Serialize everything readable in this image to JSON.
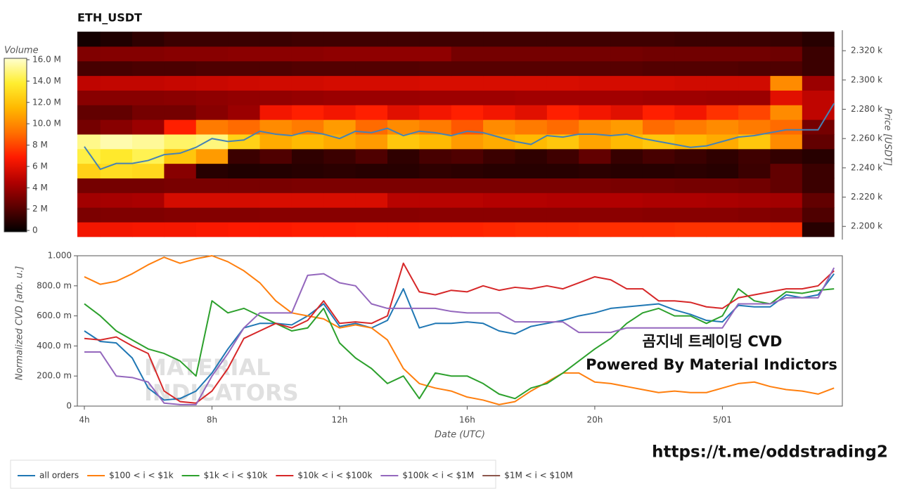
{
  "chart_data": [
    {
      "type": "heatmap",
      "title": "ETH_USDT",
      "y_label": "Price [USDT]",
      "colorbar_title": "Volume",
      "xlim": [
        3.78,
        27.76
      ],
      "x": [
        4,
        5,
        6,
        7,
        8,
        9,
        10,
        11,
        12,
        13,
        14,
        15,
        16,
        17,
        18,
        19,
        20,
        21,
        22,
        23,
        24,
        25,
        26,
        27
      ],
      "y": [
        2198,
        2208,
        2218,
        2228,
        2238,
        2248,
        2258,
        2268,
        2278,
        2288,
        2298,
        2308,
        2318,
        2328
      ],
      "ylim": [
        2191,
        2334
      ],
      "yticks": [
        {
          "value": 2200,
          "label": "2.200 k"
        },
        {
          "value": 2220,
          "label": "2.220 k"
        },
        {
          "value": 2240,
          "label": "2.240 k"
        },
        {
          "value": 2260,
          "label": "2.260 k"
        },
        {
          "value": 2280,
          "label": "2.280 k"
        },
        {
          "value": 2300,
          "label": "2.300 k"
        },
        {
          "value": 2320,
          "label": "2.320 k"
        }
      ],
      "zlim": [
        0,
        16
      ],
      "zticks": [
        0,
        {
          "value": 2,
          "label": "2 M"
        },
        {
          "value": 4,
          "label": "4 M"
        },
        {
          "value": 6,
          "label": "6 M"
        },
        {
          "value": 8,
          "label": "8 M"
        },
        {
          "value": 10,
          "label": "10.0 M"
        },
        {
          "value": 12,
          "label": "12.0 M"
        },
        {
          "value": 14,
          "label": "14.0 M"
        },
        {
          "value": 16,
          "label": "16.0 M"
        }
      ],
      "colorscale": [
        "#000000",
        "#5a0000",
        "#b00000",
        "#ff1a00",
        "#ff7000",
        "#ffb800",
        "#ffee30",
        "#ffffd0"
      ],
      "z": [
        [
          6.5,
          6.5,
          6.6,
          6.6,
          6.7,
          6.8,
          6.8,
          6.9,
          6.9,
          7.0,
          7.0,
          7.1,
          7.1,
          7.2,
          7.3,
          7.3,
          7.4,
          7.4,
          7.4,
          7.5,
          7.5,
          7.5,
          7.4,
          1.0
        ],
        [
          3.2,
          3.3,
          3.3,
          3.4,
          3.4,
          3.4,
          3.5,
          3.5,
          3.5,
          3.5,
          3.5,
          3.6,
          3.6,
          3.6,
          3.6,
          3.6,
          3.6,
          3.6,
          3.5,
          3.5,
          3.5,
          3.4,
          3.3,
          2.0
        ],
        [
          4.2,
          4.3,
          4.4,
          5.6,
          5.6,
          5.6,
          5.7,
          5.7,
          5.7,
          5.7,
          4.8,
          4.8,
          4.8,
          4.7,
          4.7,
          4.6,
          4.6,
          4.6,
          4.5,
          4.5,
          4.4,
          4.3,
          4.2,
          2.5
        ],
        [
          3.0,
          3.0,
          3.0,
          3.1,
          3.1,
          3.1,
          3.1,
          3.2,
          3.2,
          3.2,
          3.2,
          3.2,
          3.2,
          3.2,
          3.2,
          3.2,
          3.2,
          3.1,
          3.1,
          3.0,
          3.0,
          2.9,
          2.5,
          1.5
        ],
        [
          12.5,
          13.0,
          12.8,
          3.5,
          1.0,
          0.8,
          0.9,
          1.0,
          1.1,
          1.0,
          1.0,
          1.2,
          1.1,
          1.0,
          1.0,
          1.0,
          1.1,
          1.0,
          1.0,
          1.1,
          1.0,
          1.5,
          2.5,
          1.5
        ],
        [
          14.0,
          13.5,
          14.2,
          12.0,
          10.5,
          1.5,
          2.0,
          1.2,
          1.5,
          2.0,
          1.2,
          1.8,
          2.0,
          1.5,
          1.2,
          1.6,
          2.5,
          1.4,
          1.8,
          1.5,
          1.2,
          1.6,
          1.3,
          1.0
        ],
        [
          15.0,
          15.5,
          15.2,
          14.5,
          14.8,
          12.5,
          11.0,
          11.5,
          11.0,
          10.5,
          12.0,
          11.5,
          10.5,
          11.0,
          11.5,
          12.0,
          10.8,
          11.5,
          12.0,
          11.5,
          11.0,
          12.0,
          10.0,
          2.5
        ],
        [
          3.0,
          3.5,
          4.0,
          7.0,
          9.5,
          9.0,
          10.0,
          9.5,
          10.5,
          9.0,
          10.0,
          9.5,
          8.5,
          10.0,
          9.5,
          9.0,
          10.0,
          10.5,
          9.0,
          9.5,
          10.0,
          9.5,
          9.0,
          3.0
        ],
        [
          2.5,
          2.5,
          3.0,
          3.0,
          3.5,
          4.0,
          6.5,
          7.0,
          6.5,
          7.0,
          6.0,
          6.5,
          7.0,
          6.5,
          6.0,
          7.0,
          6.5,
          6.0,
          7.0,
          6.5,
          7.5,
          8.0,
          10.0,
          5.0
        ],
        [
          3.5,
          3.5,
          3.5,
          3.6,
          3.7,
          3.8,
          3.8,
          3.9,
          4.0,
          4.0,
          4.0,
          4.1,
          4.1,
          4.1,
          4.2,
          4.2,
          4.2,
          4.2,
          4.1,
          4.1,
          4.0,
          4.0,
          6.0,
          5.0
        ],
        [
          5.0,
          5.1,
          5.1,
          5.2,
          5.3,
          5.4,
          5.5,
          5.5,
          5.6,
          5.6,
          5.6,
          5.7,
          5.7,
          5.7,
          5.7,
          5.7,
          5.6,
          5.6,
          5.6,
          5.5,
          5.5,
          5.5,
          10.0,
          4.0
        ],
        [
          1.8,
          1.8,
          1.9,
          1.9,
          2.0,
          2.0,
          2.0,
          2.1,
          2.1,
          2.1,
          2.1,
          2.2,
          2.2,
          2.2,
          2.2,
          2.2,
          2.2,
          2.2,
          2.1,
          2.1,
          2.1,
          2.0,
          2.0,
          1.5
        ],
        [
          3.3,
          3.4,
          3.4,
          3.5,
          3.5,
          3.6,
          3.6,
          3.6,
          3.7,
          3.7,
          3.7,
          3.7,
          3.0,
          3.0,
          3.0,
          3.0,
          3.0,
          3.0,
          2.9,
          2.9,
          2.9,
          2.9,
          2.8,
          1.5
        ],
        [
          0.5,
          0.8,
          1.2,
          1.5,
          1.5,
          1.5,
          1.5,
          1.6,
          1.6,
          1.6,
          1.6,
          1.6,
          1.6,
          1.6,
          1.6,
          1.6,
          1.6,
          1.6,
          1.6,
          1.5,
          1.5,
          1.5,
          1.4,
          1.0
        ]
      ],
      "price_line": {
        "color": "#4682b4",
        "x": [
          4,
          4.5,
          5,
          5.5,
          6,
          6.5,
          7,
          7.5,
          8,
          8.5,
          9,
          9.5,
          10,
          10.5,
          11,
          11.5,
          12,
          12.5,
          13,
          13.5,
          14,
          14.5,
          15,
          15.5,
          16,
          16.5,
          17,
          17.5,
          18,
          18.5,
          19,
          19.5,
          20,
          20.5,
          21,
          21.5,
          22,
          22.5,
          23,
          23.5,
          24,
          24.5,
          25,
          25.5,
          26,
          26.5,
          27,
          27.5
        ],
        "values": [
          2254.5,
          2239,
          2243,
          2243,
          2245,
          2249,
          2250,
          2254,
          2260,
          2258,
          2259,
          2265,
          2263,
          2262,
          2265,
          2263,
          2260,
          2265,
          2264,
          2267,
          2262,
          2265,
          2264,
          2262,
          2265,
          2264,
          2261,
          2258,
          2256,
          2262,
          2261,
          2263,
          2263,
          2262,
          2263,
          2260,
          2258,
          2256,
          2254,
          2255,
          2258,
          2261,
          2262,
          2264,
          2266,
          2266,
          2266,
          2284
        ]
      }
    },
    {
      "type": "line",
      "x_label": "Date (UTC)",
      "y_label": "Normalized CVD [arb. u.]",
      "xlim": [
        3.78,
        27.76
      ],
      "xticks": [
        {
          "value": 4,
          "label": "4h"
        },
        {
          "value": 8,
          "label": "8h"
        },
        {
          "value": 12,
          "label": "12h"
        },
        {
          "value": 16,
          "label": "16h"
        },
        {
          "value": 20,
          "label": "20h"
        },
        {
          "value": 24,
          "label": "5/01"
        }
      ],
      "ylim": [
        0,
        1
      ],
      "yticks": [
        0,
        {
          "value": 0.2,
          "label": "200.0 m"
        },
        {
          "value": 0.4,
          "label": "400.0 m"
        },
        {
          "value": 0.6,
          "label": "600.0 m"
        },
        {
          "value": 0.8,
          "label": "800.0 m"
        },
        {
          "value": 1,
          "label": "1.000"
        }
      ],
      "x": [
        4,
        4.5,
        5,
        5.5,
        6,
        6.5,
        7,
        7.5,
        8,
        8.5,
        9,
        9.5,
        10,
        10.5,
        11,
        11.5,
        12,
        12.5,
        13,
        13.5,
        14,
        14.5,
        15,
        15.5,
        16,
        16.5,
        17,
        17.5,
        18,
        18.5,
        19,
        19.5,
        20,
        20.5,
        21,
        21.5,
        22,
        22.5,
        23,
        23.5,
        24,
        24.5,
        25,
        25.5,
        26,
        26.5,
        27,
        27.5
      ],
      "series": [
        {
          "name": "all orders",
          "color": "#1f77b4",
          "values": [
            0.5,
            0.43,
            0.42,
            0.32,
            0.12,
            0.04,
            0.05,
            0.1,
            0.22,
            0.38,
            0.52,
            0.55,
            0.55,
            0.54,
            0.6,
            0.68,
            0.53,
            0.55,
            0.52,
            0.57,
            0.78,
            0.52,
            0.55,
            0.55,
            0.56,
            0.55,
            0.5,
            0.48,
            0.53,
            0.55,
            0.57,
            0.6,
            0.62,
            0.65,
            0.66,
            0.67,
            0.68,
            0.64,
            0.61,
            0.57,
            0.56,
            0.67,
            0.66,
            0.66,
            0.74,
            0.72,
            0.74,
            0.88
          ]
        },
        {
          "name": "$100 < i < $1k",
          "color": "#ff7f0e",
          "values": [
            0.86,
            0.81,
            0.83,
            0.88,
            0.94,
            0.99,
            0.95,
            0.98,
            1.0,
            0.96,
            0.9,
            0.82,
            0.7,
            0.62,
            0.6,
            0.58,
            0.52,
            0.54,
            0.52,
            0.44,
            0.25,
            0.15,
            0.12,
            0.1,
            0.06,
            0.04,
            0.01,
            0.03,
            0.1,
            0.16,
            0.22,
            0.22,
            0.16,
            0.15,
            0.13,
            0.11,
            0.09,
            0.1,
            0.09,
            0.09,
            0.12,
            0.15,
            0.16,
            0.13,
            0.11,
            0.1,
            0.08,
            0.12
          ]
        },
        {
          "name": "$1k < i < $10k",
          "color": "#2ca02c",
          "values": [
            0.68,
            0.6,
            0.5,
            0.44,
            0.38,
            0.35,
            0.3,
            0.2,
            0.7,
            0.62,
            0.65,
            0.6,
            0.55,
            0.5,
            0.52,
            0.65,
            0.42,
            0.32,
            0.25,
            0.15,
            0.2,
            0.05,
            0.22,
            0.2,
            0.2,
            0.15,
            0.08,
            0.05,
            0.12,
            0.15,
            0.22,
            0.3,
            0.38,
            0.45,
            0.55,
            0.62,
            0.65,
            0.6,
            0.6,
            0.55,
            0.6,
            0.78,
            0.7,
            0.68,
            0.76,
            0.75,
            0.77,
            0.78
          ]
        },
        {
          "name": "$10k < i < $100k",
          "color": "#d62728",
          "values": [
            0.45,
            0.44,
            0.46,
            0.4,
            0.35,
            0.1,
            0.03,
            0.02,
            0.1,
            0.25,
            0.45,
            0.5,
            0.55,
            0.52,
            0.57,
            0.7,
            0.55,
            0.56,
            0.55,
            0.6,
            0.95,
            0.76,
            0.74,
            0.77,
            0.76,
            0.8,
            0.77,
            0.79,
            0.78,
            0.8,
            0.78,
            0.82,
            0.86,
            0.84,
            0.78,
            0.78,
            0.7,
            0.7,
            0.69,
            0.66,
            0.65,
            0.72,
            0.74,
            0.76,
            0.78,
            0.78,
            0.8,
            0.9
          ]
        },
        {
          "name": "$100k < i < $1M",
          "color": "#9467bd",
          "values": [
            0.36,
            0.36,
            0.2,
            0.19,
            0.16,
            0.02,
            0.01,
            0.01,
            0.2,
            0.35,
            0.52,
            0.62,
            0.62,
            0.62,
            0.87,
            0.88,
            0.82,
            0.8,
            0.68,
            0.65,
            0.65,
            0.65,
            0.65,
            0.63,
            0.62,
            0.62,
            0.62,
            0.56,
            0.56,
            0.56,
            0.56,
            0.49,
            0.49,
            0.49,
            0.52,
            0.52,
            0.52,
            0.52,
            0.52,
            0.52,
            0.52,
            0.68,
            0.68,
            0.68,
            0.72,
            0.72,
            0.72,
            0.92
          ]
        },
        {
          "name": "$1M < i < $10M",
          "color": "#8c564b",
          "values": [
            null,
            null,
            null,
            null,
            null,
            null,
            null,
            null,
            null,
            null,
            null,
            null,
            null,
            null,
            null,
            null,
            null,
            null,
            null,
            null,
            null,
            null,
            null,
            null,
            null,
            null,
            null,
            null,
            null,
            null,
            null,
            null,
            null,
            null,
            null,
            null,
            null,
            null,
            null,
            null,
            null,
            null,
            null,
            null,
            null,
            null,
            null,
            null
          ]
        }
      ],
      "annotations": [
        "곰지네 트레이딩 CVD",
        "Powered By Material Indictors"
      ],
      "watermark": [
        "MATERIAL",
        "INDICATORS"
      ]
    }
  ],
  "footer_link": "https://t.me/oddstrading2"
}
